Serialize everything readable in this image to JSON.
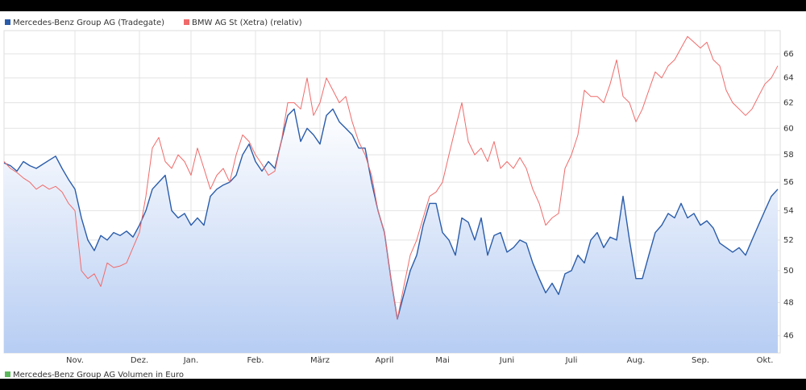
{
  "chart_data": {
    "type": "line",
    "log_scale": true,
    "grid": true,
    "ylim": [
      45,
      68
    ],
    "yticks": [
      46,
      48,
      50,
      52,
      54,
      56,
      58,
      60,
      62,
      64,
      66
    ],
    "categories": [
      null,
      null,
      null,
      null,
      null,
      null,
      null,
      null,
      null,
      null,
      null,
      "Nov.",
      null,
      null,
      null,
      null,
      null,
      null,
      null,
      null,
      null,
      "Dez.",
      null,
      null,
      null,
      null,
      null,
      null,
      null,
      "Jan.",
      null,
      null,
      null,
      null,
      null,
      null,
      null,
      null,
      null,
      "Feb.",
      null,
      null,
      null,
      null,
      null,
      null,
      null,
      null,
      null,
      "März",
      null,
      null,
      null,
      null,
      null,
      null,
      null,
      null,
      null,
      "April",
      null,
      null,
      null,
      null,
      null,
      null,
      null,
      null,
      "Mai",
      null,
      null,
      null,
      null,
      null,
      null,
      null,
      null,
      null,
      "Juni",
      null,
      null,
      null,
      null,
      null,
      null,
      null,
      null,
      null,
      "Juli",
      null,
      null,
      null,
      null,
      null,
      null,
      null,
      null,
      null,
      "Aug.",
      null,
      null,
      null,
      null,
      null,
      null,
      null,
      null,
      null,
      "Sep.",
      null,
      null,
      null,
      null,
      null,
      null,
      null,
      null,
      null,
      "Okt.",
      null,
      null
    ],
    "series": [
      {
        "name": "Mercedes-Benz Group AG (Tradegate)",
        "color": "#2a5caa",
        "area": true,
        "values": [
          57.4,
          57.2,
          56.8,
          57.5,
          57.2,
          57.0,
          57.3,
          57.6,
          57.9,
          57.0,
          56.2,
          55.5,
          53.5,
          52.0,
          51.3,
          52.3,
          52.0,
          52.5,
          52.3,
          52.6,
          52.2,
          53.0,
          54.0,
          55.5,
          56.0,
          56.5,
          54.0,
          53.5,
          53.8,
          53.0,
          53.5,
          53.0,
          55.0,
          55.5,
          55.8,
          56.0,
          56.5,
          58.0,
          58.8,
          57.5,
          56.8,
          57.5,
          57.0,
          59.0,
          61.0,
          61.5,
          59.0,
          60.0,
          59.5,
          58.8,
          61.0,
          61.5,
          60.5,
          60.0,
          59.5,
          58.5,
          58.5,
          56.0,
          54.0,
          52.5,
          49.5,
          47.0,
          48.5,
          50.0,
          51.0,
          53.0,
          54.5,
          54.5,
          52.5,
          52.0,
          51.0,
          53.5,
          53.2,
          52.0,
          53.5,
          51.0,
          52.3,
          52.5,
          51.2,
          51.5,
          52.0,
          51.8,
          50.5,
          49.5,
          48.6,
          49.2,
          48.5,
          49.8,
          50.0,
          51.0,
          50.5,
          52.0,
          52.5,
          51.5,
          52.2,
          52.0,
          55.0,
          52.0,
          49.5,
          49.5,
          51.0,
          52.5,
          53.0,
          53.8,
          53.5,
          54.5,
          53.5,
          53.8,
          53.0,
          53.3,
          52.8,
          51.8,
          51.5,
          51.2,
          51.5,
          51.0,
          52.0,
          53.0,
          54.0,
          55.0,
          55.5
        ]
      },
      {
        "name": "BMW AG St (Xetra) (relativ)",
        "color": "#f06a6a",
        "area": false,
        "values": [
          57.5,
          57.0,
          56.7,
          56.3,
          56.0,
          55.5,
          55.8,
          55.5,
          55.7,
          55.3,
          54.5,
          54.0,
          50.0,
          49.5,
          49.8,
          49.0,
          50.5,
          50.2,
          50.3,
          50.5,
          51.5,
          52.5,
          55.0,
          58.5,
          59.3,
          57.5,
          57.0,
          58.0,
          57.5,
          56.5,
          58.5,
          57.0,
          55.5,
          56.5,
          57.0,
          56.0,
          58.0,
          59.5,
          59.0,
          58.0,
          57.3,
          56.5,
          56.8,
          59.0,
          62.0,
          62.0,
          61.5,
          64.0,
          61.0,
          62.0,
          64.0,
          63.0,
          62.0,
          62.5,
          60.5,
          59.0,
          58.0,
          56.5,
          54.0,
          52.5,
          49.5,
          47.0,
          49.0,
          51.0,
          52.0,
          53.5,
          55.0,
          55.3,
          56.0,
          58.0,
          60.0,
          62.0,
          59.0,
          58.0,
          58.5,
          57.5,
          59.0,
          57.0,
          57.5,
          57.0,
          57.8,
          57.0,
          55.5,
          54.5,
          53.0,
          53.5,
          53.8,
          57.0,
          58.0,
          59.5,
          63.0,
          62.5,
          62.5,
          62.0,
          63.5,
          65.5,
          62.5,
          62.0,
          60.5,
          61.5,
          63.0,
          64.5,
          64.0,
          65.0,
          65.5,
          66.5,
          67.5,
          67.0,
          66.5,
          67.0,
          65.5,
          65.0,
          63.0,
          62.0,
          61.5,
          61.0,
          61.5,
          62.5,
          63.5,
          64.0,
          65.0
        ]
      }
    ],
    "volume_legend": {
      "name": "Mercedes-Benz Group AG Volumen in Euro",
      "color": "#5cb85c"
    }
  }
}
